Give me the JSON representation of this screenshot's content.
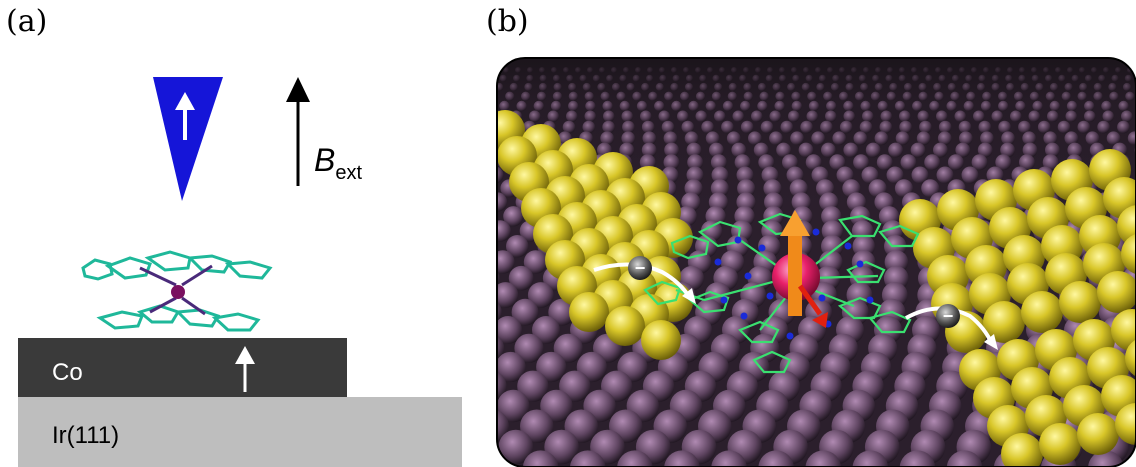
{
  "panels": {
    "a": {
      "label": "(a)",
      "field_label_main": "B",
      "field_label_sub": "ext",
      "co_label": "Co",
      "ir_label": "Ir(111)"
    },
    "b": {
      "label": "(b)",
      "electron_symbol": "−"
    }
  },
  "colors": {
    "tip": "#1515d8",
    "co_layer": "#3a3a3a",
    "ir_layer": "#bebebe",
    "molecule_bond": "#1fb89a",
    "molecule_center": "#7a1060",
    "substrate": "#2b1f2c",
    "substrate_atom": "#8a6a8c",
    "electrode": "#d8c628",
    "spin_atom": "#e8206a",
    "spin_arrow": "#f08a1a",
    "tilted_arrow": "#e02010",
    "nitrogen": "#1a2bd8",
    "bond_green": "#3ae070"
  }
}
